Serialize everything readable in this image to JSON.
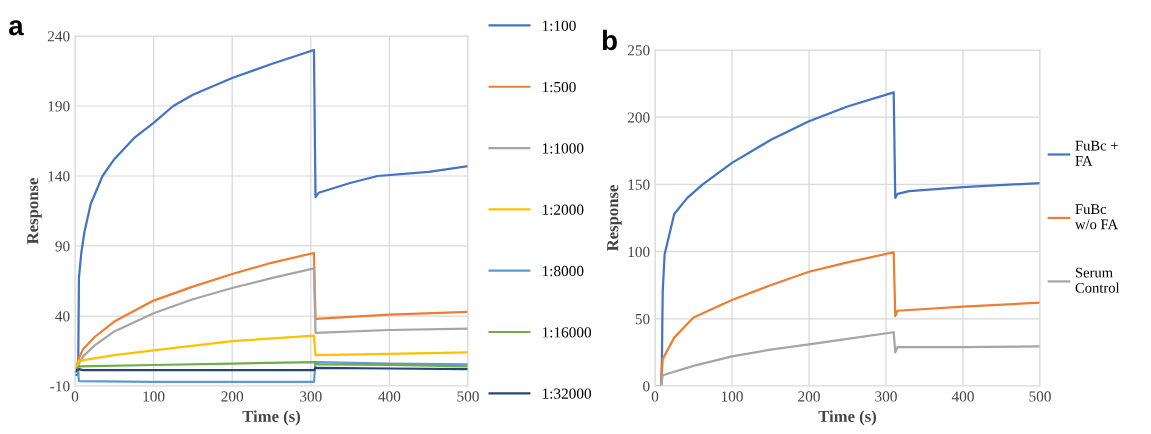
{
  "chart_data": [
    {
      "type": "line",
      "title": "a",
      "xlabel": "Time (s)",
      "ylabel": "Response",
      "xlim": [
        0,
        500
      ],
      "xticks": [
        0,
        100,
        200,
        300,
        400,
        500
      ],
      "ylim": [
        -10,
        240
      ],
      "yticks": [
        -10,
        40,
        90,
        140,
        190,
        240
      ],
      "grid": true,
      "legend": "right",
      "marker": "none",
      "line_style": "solid",
      "series": [
        {
          "name": "1:100",
          "color": "#4472c4",
          "x": [
            0,
            4,
            5,
            8,
            12,
            20,
            35,
            50,
            75,
            100,
            125,
            150,
            200,
            250,
            304,
            306,
            310,
            350,
            385,
            450,
            500
          ],
          "values": [
            -2,
            -2,
            67,
            85,
            100,
            120,
            140,
            152,
            167,
            178,
            190,
            198,
            210,
            220,
            230,
            125,
            128,
            135,
            140,
            143,
            147
          ]
        },
        {
          "name": "1:500",
          "color": "#ed7d31",
          "x": [
            0,
            5,
            10,
            25,
            50,
            100,
            150,
            200,
            250,
            304,
            306,
            400,
            500
          ],
          "values": [
            0,
            10,
            16,
            25,
            36,
            51,
            61,
            70,
            78,
            85,
            38,
            41,
            43
          ]
        },
        {
          "name": "1:1000",
          "color": "#a5a5a5",
          "x": [
            0,
            5,
            10,
            25,
            50,
            100,
            150,
            200,
            250,
            304,
            306,
            400,
            500
          ],
          "values": [
            0,
            6,
            11,
            19,
            29,
            42,
            52,
            60,
            67,
            74,
            28,
            30,
            31
          ]
        },
        {
          "name": "1:2000",
          "color": "#ffc000",
          "x": [
            0,
            5,
            50,
            100,
            200,
            304,
            306,
            400,
            500
          ],
          "values": [
            0,
            8,
            12,
            15.5,
            22,
            26,
            12,
            13,
            14
          ]
        },
        {
          "name": "1:8000",
          "color": "#5b9bd5",
          "x": [
            0,
            4,
            5,
            100,
            200,
            304,
            306,
            400,
            500
          ],
          "values": [
            0,
            0,
            -6.5,
            -7,
            -7,
            -7,
            7,
            6,
            5.5
          ]
        },
        {
          "name": "1:16000",
          "color": "#70ad47",
          "x": [
            0,
            5,
            100,
            200,
            304,
            306,
            310,
            400,
            500
          ],
          "values": [
            0,
            4,
            5,
            6,
            7,
            6,
            5.5,
            5,
            4
          ]
        },
        {
          "name": "1:32000",
          "color": "#264478",
          "x": [
            0,
            5,
            10,
            100,
            200,
            304,
            306,
            400,
            500
          ],
          "values": [
            0.5,
            2,
            1.3,
            1.3,
            1.3,
            1.3,
            3,
            2.5,
            2
          ]
        }
      ]
    },
    {
      "type": "line",
      "title": "b",
      "xlabel": "Time (s)",
      "ylabel": "Response",
      "xlim": [
        0,
        500
      ],
      "xticks": [
        0,
        100,
        200,
        300,
        400,
        500
      ],
      "ylim": [
        0,
        250
      ],
      "yticks": [
        0,
        50,
        100,
        150,
        200,
        250
      ],
      "grid": true,
      "legend": "right",
      "marker": "none",
      "line_style": "solid",
      "series": [
        {
          "name": "FuBc +\nFA",
          "color": "#4472c4",
          "x": [
            0,
            8,
            9,
            10,
            12.5,
            25,
            42,
            62,
            100,
            150,
            200,
            250,
            310,
            312,
            315,
            330,
            400,
            500
          ],
          "values": [
            0,
            0,
            20,
            70,
            98,
            128,
            140,
            150,
            166,
            183,
            197,
            208,
            218.5,
            140,
            143,
            145,
            148,
            151
          ]
        },
        {
          "name": "FuBc\nw/o FA",
          "color": "#ed7d31",
          "x": [
            0,
            8,
            10,
            25,
            50,
            100,
            150,
            200,
            250,
            310,
            312,
            315,
            400,
            500
          ],
          "values": [
            0,
            0,
            20,
            36,
            51,
            64,
            75,
            85,
            92,
            99.5,
            52,
            56,
            59,
            62
          ]
        },
        {
          "name": "Serum\nControl",
          "color": "#a5a5a5",
          "x": [
            0,
            8,
            10,
            50,
            100,
            150,
            200,
            250,
            310,
            312,
            315,
            400,
            500
          ],
          "values": [
            0,
            0,
            8,
            15,
            22,
            27,
            31,
            35,
            40,
            25,
            29,
            29,
            29.5
          ]
        }
      ]
    }
  ]
}
